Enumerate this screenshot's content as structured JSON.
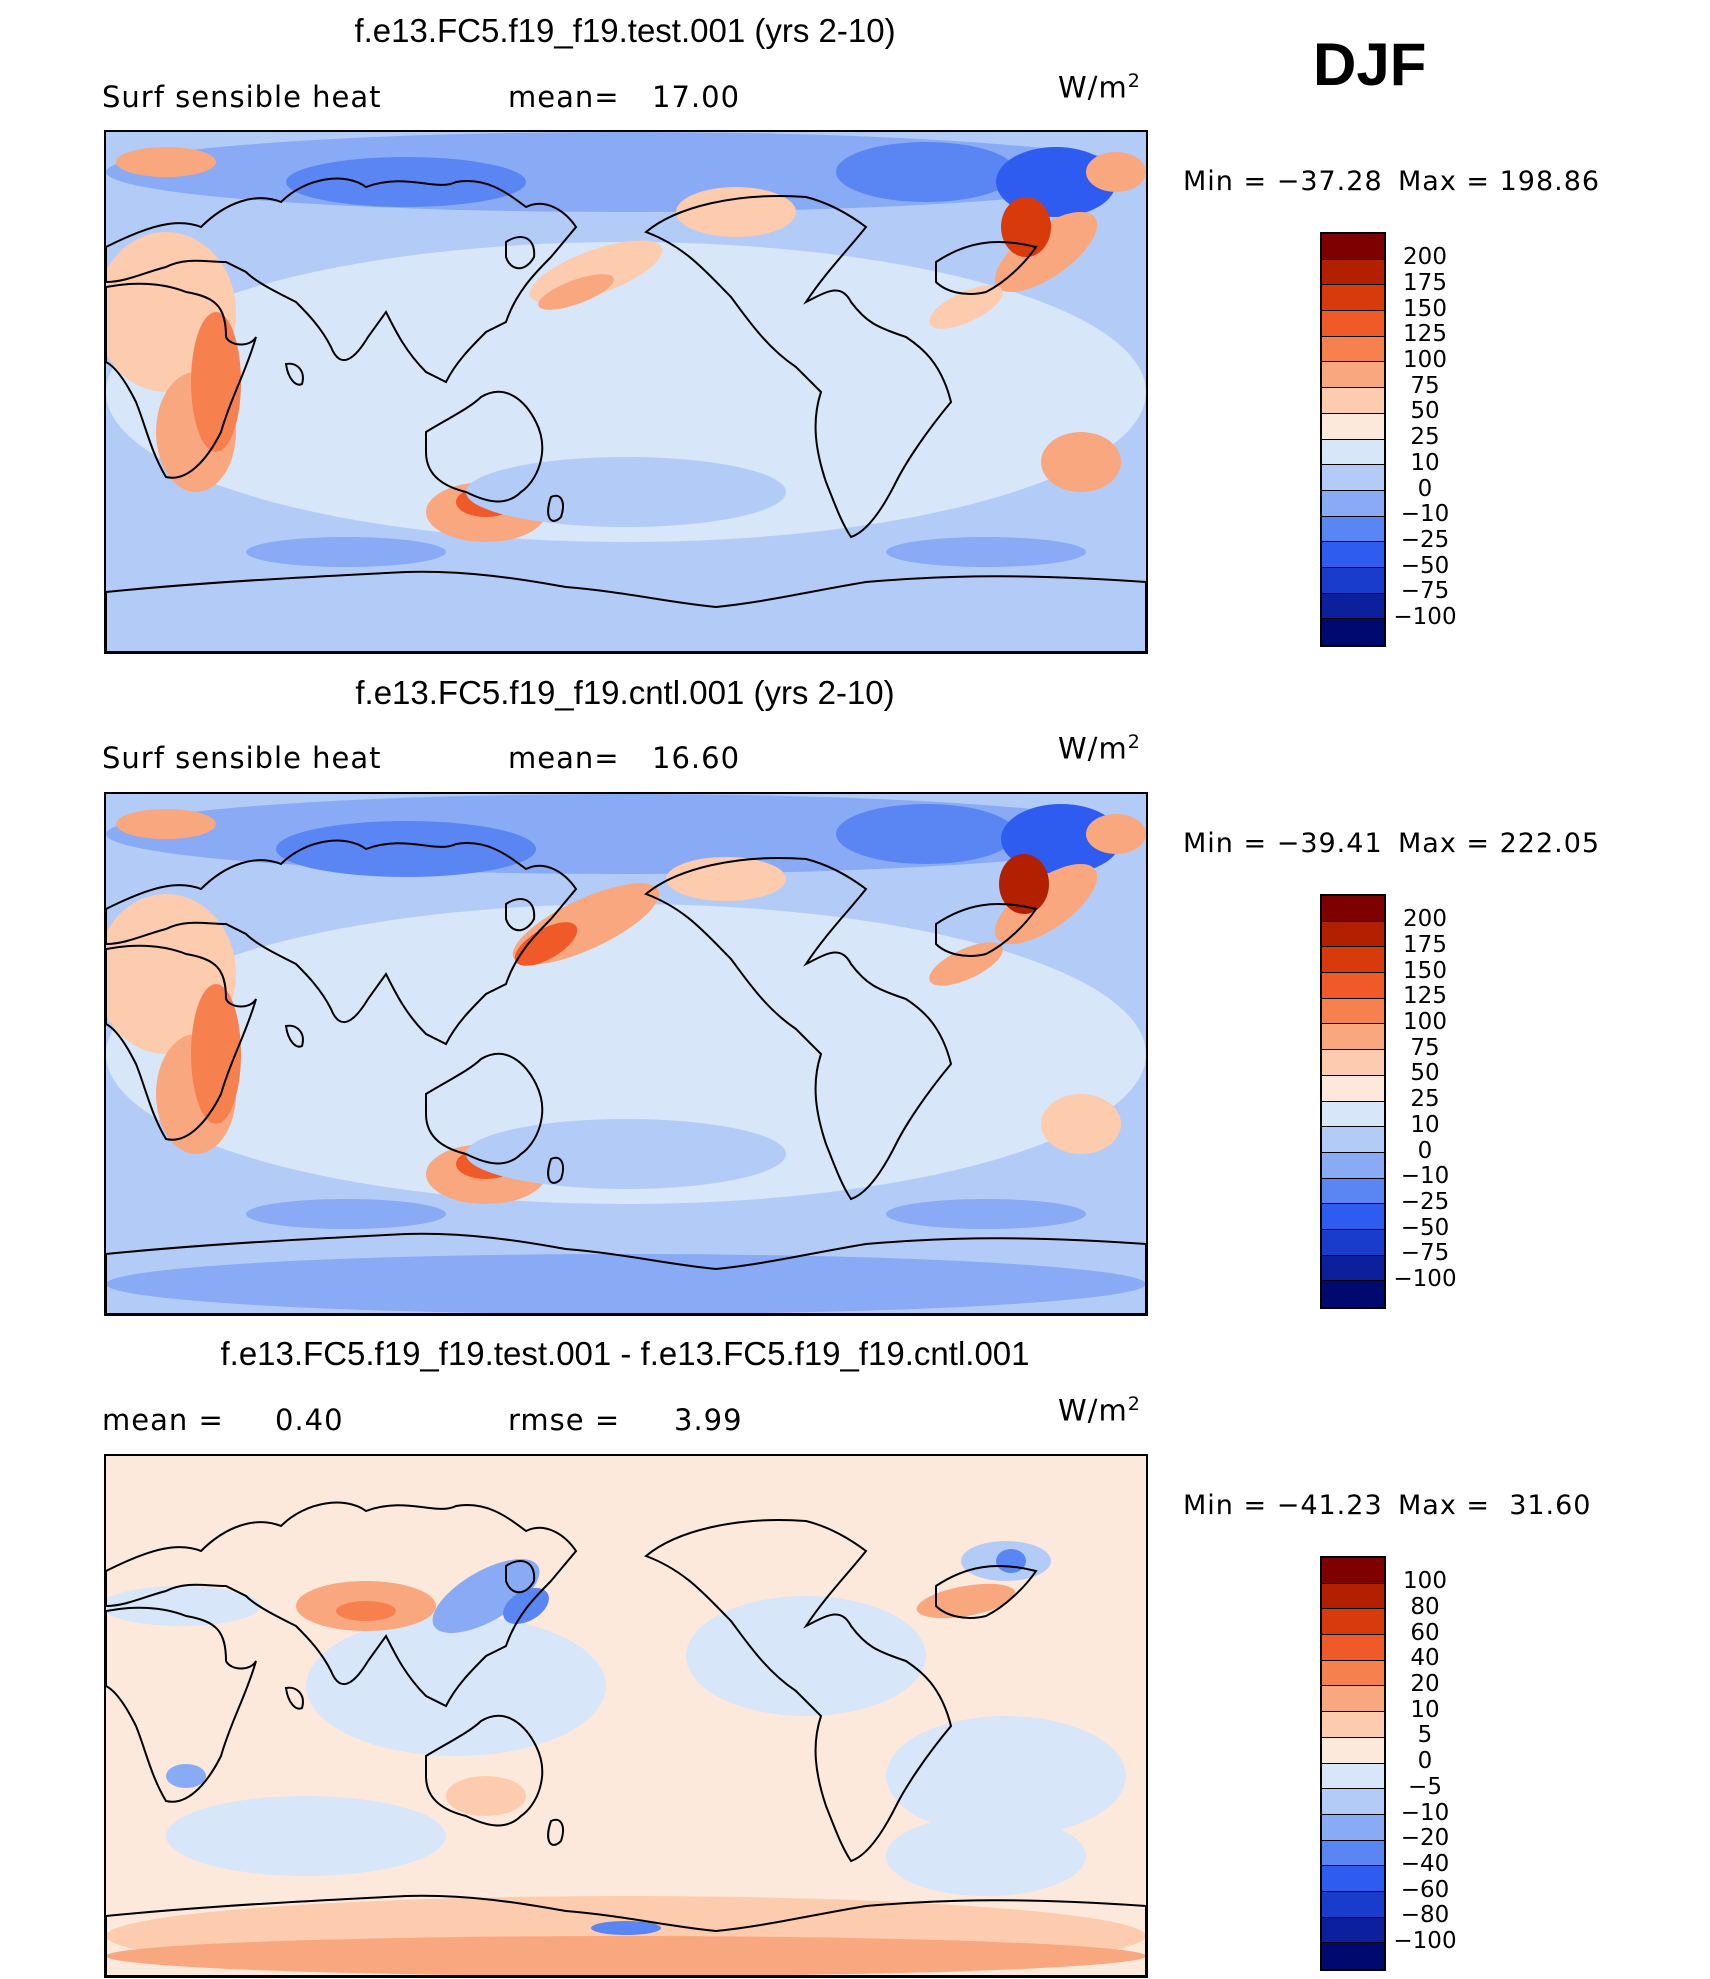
{
  "season": "DJF",
  "chart_data": [
    {
      "type": "heatmap",
      "title": "f.e13.FC5.f19_f19.test.001 (yrs 2-10)",
      "variable": "Surf sensible heat",
      "stat_label": "mean=",
      "stat_value": "17.00",
      "units": "W/m",
      "units_exp": "2",
      "min_text": "Min = −37.28",
      "max_text": "Max = 198.86",
      "min": -37.28,
      "max": 198.86,
      "colorbar_levels": [
        "200",
        "175",
        "150",
        "125",
        "100",
        "75",
        "50",
        "25",
        "10",
        "0",
        "−10",
        "−25",
        "−50",
        "−75",
        "−100"
      ],
      "colorbar_colors": [
        "#7f0000",
        "#b22000",
        "#d83a0c",
        "#f05a28",
        "#f7804f",
        "#f9a77f",
        "#fdcbae",
        "#fde9dc",
        "#d7e6f8",
        "#b3ccf7",
        "#89aaf5",
        "#5a86f3",
        "#2f5cf0",
        "#1a3ccc",
        "#0c1f9c",
        "#000a6e"
      ]
    },
    {
      "type": "heatmap",
      "title": "f.e13.FC5.f19_f19.cntl.001 (yrs 2-10)",
      "variable": "Surf sensible heat",
      "stat_label": "mean=",
      "stat_value": "16.60",
      "units": "W/m",
      "units_exp": "2",
      "min_text": "Min = −39.41",
      "max_text": "Max = 222.05",
      "min": -39.41,
      "max": 222.05,
      "colorbar_levels": [
        "200",
        "175",
        "150",
        "125",
        "100",
        "75",
        "50",
        "25",
        "10",
        "0",
        "−10",
        "−25",
        "−50",
        "−75",
        "−100"
      ],
      "colorbar_colors": [
        "#7f0000",
        "#b22000",
        "#d83a0c",
        "#f05a28",
        "#f7804f",
        "#f9a77f",
        "#fdcbae",
        "#fde9dc",
        "#d7e6f8",
        "#b3ccf7",
        "#89aaf5",
        "#5a86f3",
        "#2f5cf0",
        "#1a3ccc",
        "#0c1f9c",
        "#000a6e"
      ]
    },
    {
      "type": "heatmap",
      "title": "f.e13.FC5.f19_f19.test.001 - f.e13.FC5.f19_f19.cntl.001",
      "variable": "mean =",
      "stat_label": "rmse =",
      "mean_value": "0.40",
      "stat_value": "3.99",
      "units": "W/m",
      "units_exp": "2",
      "min_text": "Min = −41.23",
      "max_text": "Max =  31.60",
      "min": -41.23,
      "max": 31.6,
      "colorbar_levels": [
        "100",
        "80",
        "60",
        "40",
        "20",
        "10",
        "5",
        "0",
        "−5",
        "−10",
        "−20",
        "−40",
        "−60",
        "−80",
        "−100"
      ],
      "colorbar_colors": [
        "#7f0000",
        "#b22000",
        "#d83a0c",
        "#f05a28",
        "#f7804f",
        "#f9a77f",
        "#fdcbae",
        "#fde9dc",
        "#d7e6f8",
        "#b3ccf7",
        "#89aaf5",
        "#5a86f3",
        "#2f5cf0",
        "#1a3ccc",
        "#0c1f9c",
        "#000a6e"
      ]
    }
  ]
}
